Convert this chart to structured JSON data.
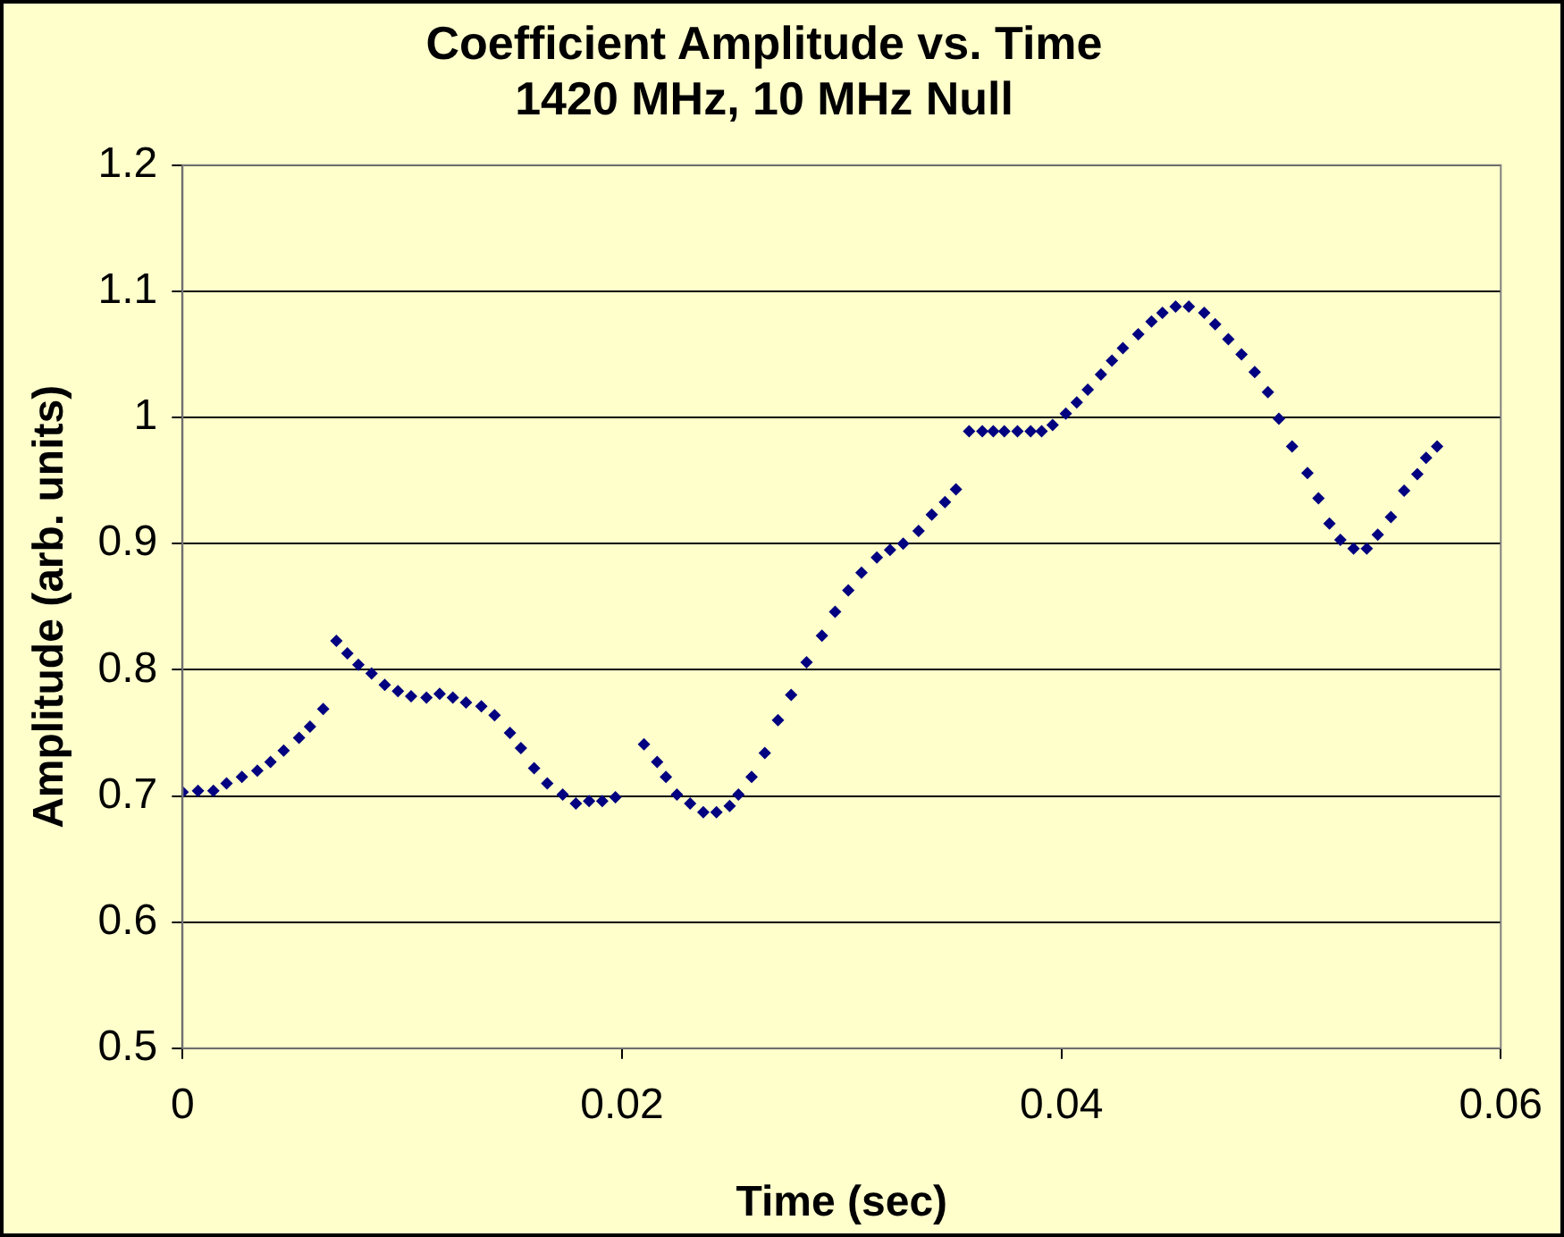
{
  "chart_data": {
    "type": "scatter",
    "title": "Coefficient Amplitude vs. Time\n1420 MHz, 10 MHz Null",
    "xlabel": "Time (sec)",
    "ylabel": "Amplitude (arb. units)",
    "xlim": [
      0,
      0.06
    ],
    "xticks": [
      0,
      0.02,
      0.04,
      0.06
    ],
    "ylim": [
      0.5,
      1.2
    ],
    "yticks": [
      0.5,
      0.6,
      0.7,
      0.8,
      0.9,
      1,
      1.1,
      1.2
    ],
    "grid": "y",
    "legend": false,
    "marker": "diamond",
    "series": [
      {
        "color": "#000080",
        "x": [
          0,
          0.0007,
          0.0014,
          0.002,
          0.0027,
          0.0034,
          0.004,
          0.0046,
          0.0053,
          0.0058,
          0.0064,
          0.007,
          0.0075,
          0.008,
          0.0086,
          0.0092,
          0.0098,
          0.0104,
          0.0111,
          0.0117,
          0.0123,
          0.0129,
          0.0136,
          0.0142,
          0.0149,
          0.0154,
          0.016,
          0.0166,
          0.0173,
          0.0179,
          0.0185,
          0.0191,
          0.0197,
          0.021,
          0.0216,
          0.022,
          0.0225,
          0.0231,
          0.0237,
          0.0243,
          0.0249,
          0.0253,
          0.0259,
          0.0265,
          0.0271,
          0.0277,
          0.0284,
          0.0291,
          0.0297,
          0.0303,
          0.0309,
          0.0316,
          0.0322,
          0.0328,
          0.0335,
          0.0341,
          0.0347,
          0.0352,
          0.0358,
          0.0364,
          0.0369,
          0.0374,
          0.038,
          0.0386,
          0.0391,
          0.0396,
          0.0402,
          0.0407,
          0.0412,
          0.0418,
          0.0423,
          0.0428,
          0.0435,
          0.0441,
          0.0446,
          0.0452,
          0.0458,
          0.0465,
          0.047,
          0.0476,
          0.0482,
          0.0488,
          0.0494,
          0.0499,
          0.0505,
          0.0512,
          0.0517,
          0.0522,
          0.0527,
          0.0533,
          0.0539,
          0.0544,
          0.055,
          0.0556,
          0.0562,
          0.0566,
          0.0571
        ],
        "values": [
          0.703,
          0.704,
          0.704,
          0.71,
          0.715,
          0.72,
          0.727,
          0.736,
          0.746,
          0.755,
          0.769,
          0.823,
          0.813,
          0.804,
          0.797,
          0.788,
          0.783,
          0.779,
          0.778,
          0.781,
          0.778,
          0.774,
          0.771,
          0.764,
          0.75,
          0.738,
          0.722,
          0.71,
          0.701,
          0.694,
          0.696,
          0.696,
          0.699,
          0.741,
          0.727,
          0.715,
          0.701,
          0.694,
          0.687,
          0.687,
          0.692,
          0.701,
          0.715,
          0.734,
          0.76,
          0.78,
          0.806,
          0.827,
          0.846,
          0.863,
          0.877,
          0.889,
          0.895,
          0.9,
          0.91,
          0.923,
          0.933,
          0.943,
          0.989,
          0.989,
          0.989,
          0.989,
          0.989,
          0.989,
          0.989,
          0.994,
          1.003,
          1.012,
          1.022,
          1.034,
          1.045,
          1.055,
          1.066,
          1.076,
          1.083,
          1.088,
          1.088,
          1.083,
          1.074,
          1.062,
          1.05,
          1.036,
          1.02,
          0.999,
          0.977,
          0.956,
          0.936,
          0.916,
          0.903,
          0.896,
          0.896,
          0.907,
          0.921,
          0.942,
          0.955,
          0.968,
          0.977
        ]
      }
    ]
  }
}
